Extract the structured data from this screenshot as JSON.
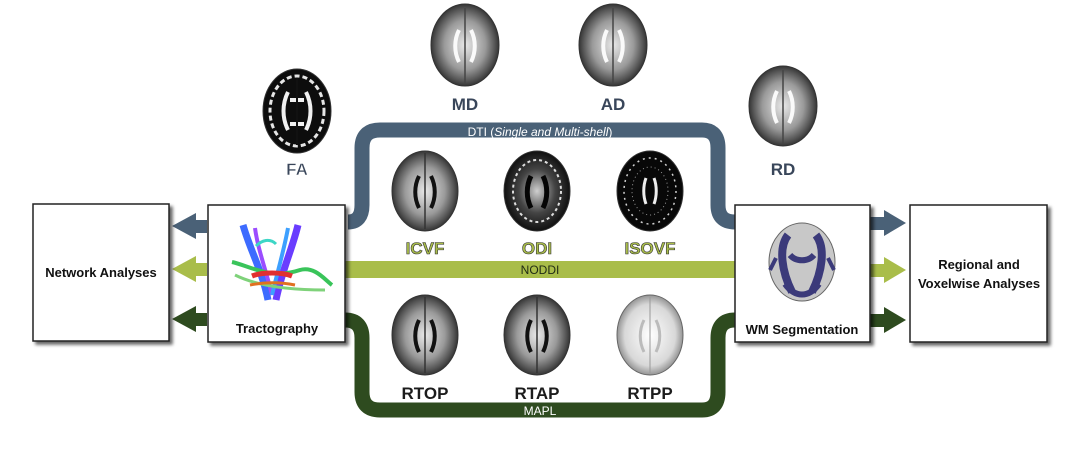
{
  "colors": {
    "dti": "#4a6177",
    "noddi": "#a9bd4a",
    "mapl": "#2e4b1f",
    "box_border": "#222222",
    "brain_bg": "#111111"
  },
  "boxes": {
    "network": "Network Analyses",
    "tractography": "Tractography",
    "wm_segmentation": "WM Segmentation",
    "regional_line1": "Regional and",
    "regional_line2": "Voxelwise Analyses"
  },
  "bands": {
    "dti_prefix": "DTI (",
    "dti_italic": "Single and Multi-shell",
    "dti_suffix": ")",
    "noddi": "NODDI",
    "mapl": "MAPL"
  },
  "brains": {
    "fa": "FA",
    "md": "MD",
    "ad": "AD",
    "rd": "RD",
    "icvf": "ICVF",
    "odi": "ODI",
    "isovf": "ISOVF",
    "rtop": "RTOP",
    "rtap": "RTAP",
    "rtpp": "RTPP"
  }
}
